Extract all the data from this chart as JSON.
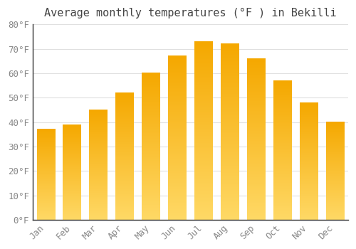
{
  "title": "Average monthly temperatures (°F ) in Bekilli",
  "months": [
    "Jan",
    "Feb",
    "Mar",
    "Apr",
    "May",
    "Jun",
    "Jul",
    "Aug",
    "Sep",
    "Oct",
    "Nov",
    "Dec"
  ],
  "values": [
    37,
    39,
    45,
    52,
    60,
    67,
    73,
    72,
    66,
    57,
    48,
    40
  ],
  "bar_color_top": "#F5A800",
  "bar_color_bottom": "#FFD966",
  "ylim": [
    0,
    80
  ],
  "yticks": [
    0,
    10,
    20,
    30,
    40,
    50,
    60,
    70,
    80
  ],
  "background_color": "#ffffff",
  "grid_color": "#e0e0e0",
  "title_fontsize": 11,
  "tick_fontsize": 9,
  "font_family": "monospace",
  "bar_width": 0.7
}
